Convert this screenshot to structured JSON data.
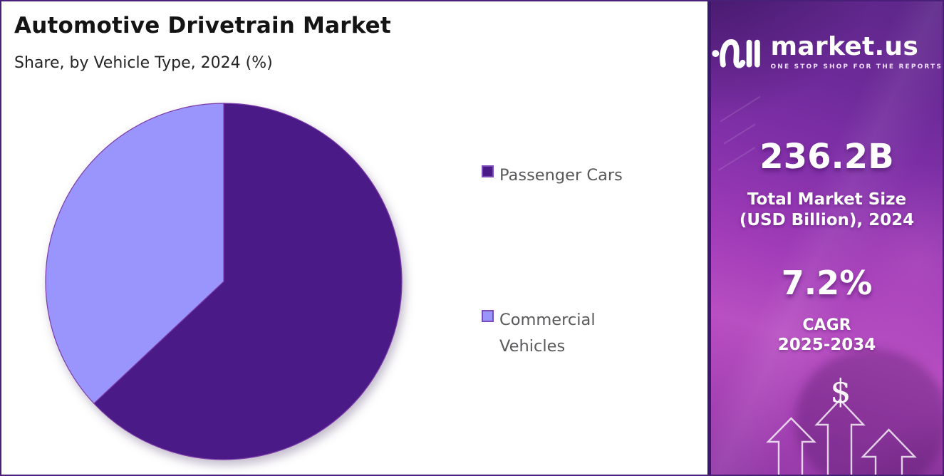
{
  "header": {
    "title": "Automotive Drivetrain Market",
    "subtitle": "Share, by Vehicle Type, 2024 (%)"
  },
  "chart_data": {
    "type": "pie",
    "title": "Automotive Drivetrain Market",
    "subtitle": "Share, by Vehicle Type, 2024 (%)",
    "unit": "%",
    "year": 2024,
    "start_angle_deg": 0,
    "direction": "clockwise",
    "legend_position": "right",
    "data_labels_shown": false,
    "slices": [
      {
        "label": "Passenger Cars",
        "value": 63,
        "color": "#4a1a86"
      },
      {
        "label": "Commercial Vehicles",
        "value": 37,
        "color": "#9a94fd"
      }
    ]
  },
  "sidebar": {
    "brand": {
      "name": "market.us",
      "tagline": "ONE STOP SHOP FOR THE REPORTS",
      "logo_icon": "market-us-wave-icon"
    },
    "market_size": {
      "value": "236.2B",
      "label_line1": "Total Market Size",
      "label_line2": "(USD Billion), 2024"
    },
    "cagr": {
      "value": "7.2%",
      "label": "CAGR",
      "period": "2025-2034"
    },
    "decor": {
      "dollar_symbol": "$",
      "arrows_icon": "growth-arrows-icon"
    }
  },
  "colors": {
    "slice_dark": "#4a1a86",
    "slice_light": "#9a94fd",
    "pie_stroke": "#7c3aa8",
    "legend_marker_border": "#7a4cba",
    "legend_text": "#58595b",
    "page_border": "#482077",
    "sidebar_gradient_top": "#5c2688",
    "sidebar_gradient_bright": "#b84fc2",
    "text_white": "#ffffff"
  }
}
